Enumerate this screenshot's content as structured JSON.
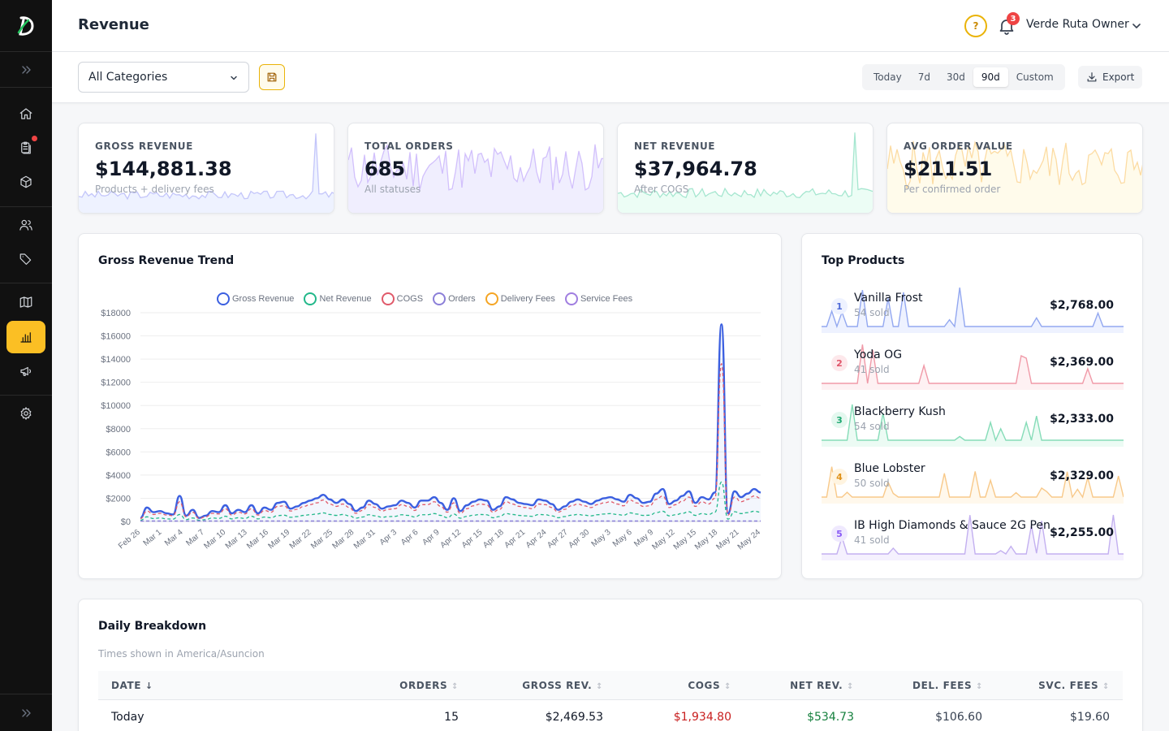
{
  "header": {
    "title": "Revenue",
    "help_glyph": "?",
    "notification_count": "3",
    "user_name": "Verde Ruta Owner"
  },
  "sidebar": {
    "items": [
      {
        "icon": "home-icon",
        "active": false
      },
      {
        "icon": "clipboard-icon",
        "active": false,
        "has_dot": true
      },
      {
        "icon": "box-icon",
        "active": false
      },
      {
        "icon": "users-icon",
        "active": false
      },
      {
        "icon": "tag-icon",
        "active": false
      },
      {
        "icon": "map-icon",
        "active": false
      },
      {
        "icon": "bar-chart-icon",
        "active": true
      },
      {
        "icon": "megaphone-icon",
        "active": false
      },
      {
        "icon": "gear-icon",
        "active": false
      }
    ]
  },
  "toolbar": {
    "category": "All Categories",
    "ranges": [
      "Today",
      "7d",
      "30d",
      "90d",
      "Custom"
    ],
    "active_range": "90d",
    "export_label": "Export"
  },
  "kpis": [
    {
      "label": "GROSS REVENUE",
      "value": "$144,881.38",
      "sub": "Products + delivery fees",
      "color": "#6366f1",
      "fill": "#eef2ff"
    },
    {
      "label": "TOTAL ORDERS",
      "value": "685",
      "sub": "All statuses",
      "color": "#8b5cf6",
      "fill": "#f0eefe"
    },
    {
      "label": "NET REVENUE",
      "value": "$37,964.78",
      "sub": "After COGS",
      "color": "#10b981",
      "fill": "#ecfdf5"
    },
    {
      "label": "AVG ORDER VALUE",
      "value": "$211.51",
      "sub": "Per confirmed order",
      "color": "#f59e0b",
      "fill": "#fffbeb"
    }
  ],
  "trend": {
    "title": "Gross Revenue Trend",
    "legend": [
      {
        "name": "Gross Revenue",
        "color": "#3b5fe0"
      },
      {
        "name": "Net Revenue",
        "color": "#22b88a"
      },
      {
        "name": "COGS",
        "color": "#e05a6a"
      },
      {
        "name": "Orders",
        "color": "#8b7fd8"
      },
      {
        "name": "Delivery Fees",
        "color": "#f5a524"
      },
      {
        "name": "Service Fees",
        "color": "#a07ee0"
      }
    ]
  },
  "chart_data": {
    "type": "line",
    "ylim": [
      0,
      18000
    ],
    "y_ticks": [
      "$0",
      "$2000",
      "$4000",
      "$6000",
      "$8000",
      "$10000",
      "$12000",
      "$14000",
      "$16000",
      "$18000"
    ],
    "x_ticks": [
      "Feb 26",
      "Mar 1",
      "Mar 4",
      "Mar 7",
      "Mar 10",
      "Mar 13",
      "Mar 16",
      "Mar 19",
      "Mar 22",
      "Mar 25",
      "Mar 28",
      "Mar 31",
      "Apr 3",
      "Apr 6",
      "Apr 9",
      "Apr 12",
      "Apr 15",
      "Apr 18",
      "Apr 21",
      "Apr 24",
      "Apr 27",
      "Apr 30",
      "May 3",
      "May 6",
      "May 9",
      "May 12",
      "May 15",
      "May 18",
      "May 21",
      "May 24"
    ],
    "series": [
      {
        "name": "Gross Revenue",
        "values": [
          300,
          1200,
          800,
          900,
          700,
          600,
          2200,
          500,
          1000,
          300,
          500,
          900,
          800,
          1400,
          700,
          1000,
          800,
          1400,
          700,
          1200,
          1000,
          1600,
          1700,
          1100,
          1300,
          1600,
          1800,
          2000,
          2300,
          1900,
          1600,
          1900,
          1500,
          900,
          1200,
          1800,
          1500,
          1100,
          1300,
          1400,
          1800,
          1600,
          1200,
          1800,
          1800,
          2100,
          1600,
          1000,
          2000,
          900,
          1400,
          1700,
          1900,
          1800,
          1000,
          1300,
          2100,
          1900,
          1600,
          1500,
          1400,
          1900,
          1800,
          1500,
          1000,
          1300,
          1700,
          1900,
          1700,
          1500,
          1800,
          2000,
          2100,
          1900,
          1700,
          2300,
          2000,
          1600,
          1700,
          2400,
          2800,
          1500,
          1800,
          2200,
          2600,
          1600,
          2100,
          1900,
          2500,
          17000,
          700,
          2600,
          2100,
          2400,
          2800,
          2500
        ]
      },
      {
        "name": "COGS",
        "values": [
          250,
          900,
          600,
          700,
          550,
          500,
          1700,
          400,
          800,
          250,
          400,
          700,
          650,
          1100,
          550,
          800,
          650,
          1100,
          550,
          950,
          800,
          1300,
          1350,
          900,
          1050,
          1300,
          1450,
          1600,
          1850,
          1500,
          1300,
          1500,
          1200,
          700,
          950,
          1450,
          1200,
          900,
          1050,
          1100,
          1450,
          1300,
          950,
          1450,
          1450,
          1700,
          1300,
          800,
          1600,
          700,
          1100,
          1350,
          1500,
          1450,
          800,
          1050,
          1700,
          1500,
          1300,
          1200,
          1100,
          1500,
          1450,
          1200,
          800,
          1050,
          1350,
          1500,
          1350,
          1200,
          1450,
          1600,
          1700,
          1500,
          1350,
          1850,
          1600,
          1300,
          1350,
          1900,
          2200,
          1200,
          1450,
          1750,
          2100,
          1300,
          1700,
          1500,
          2000,
          13600,
          550,
          2100,
          1700,
          1900,
          2200,
          2000
        ]
      },
      {
        "name": "Net Revenue",
        "values": [
          100,
          400,
          250,
          300,
          220,
          200,
          600,
          160,
          300,
          100,
          160,
          300,
          260,
          450,
          220,
          320,
          260,
          450,
          220,
          380,
          320,
          500,
          540,
          360,
          420,
          520,
          580,
          640,
          740,
          600,
          520,
          600,
          480,
          280,
          380,
          580,
          480,
          360,
          420,
          440,
          580,
          520,
          380,
          580,
          580,
          680,
          520,
          320,
          640,
          280,
          440,
          540,
          600,
          580,
          320,
          420,
          680,
          600,
          520,
          480,
          440,
          600,
          580,
          480,
          320,
          420,
          540,
          600,
          540,
          480,
          580,
          640,
          680,
          600,
          540,
          740,
          640,
          520,
          540,
          760,
          880,
          480,
          580,
          700,
          840,
          520,
          680,
          600,
          800,
          3400,
          200,
          840,
          680,
          760,
          880,
          800
        ]
      }
    ]
  },
  "top_products": {
    "title": "Top Products",
    "items": [
      {
        "rank": "1",
        "name": "Vanilla Frost",
        "sold": "54 sold",
        "revenue": "$2,768.00",
        "color": "#93a8f0",
        "fill": "#eef2ff",
        "rank_bg": "#eef2ff",
        "rank_fg": "#4f6bd8"
      },
      {
        "rank": "2",
        "name": "Yoda OG",
        "sold": "41 sold",
        "revenue": "$2,369.00",
        "color": "#f09aa8",
        "fill": "#fef1f3",
        "rank_bg": "#fde8eb",
        "rank_fg": "#e0566a"
      },
      {
        "rank": "3",
        "name": "Blackberry Kush",
        "sold": "54 sold",
        "revenue": "$2,333.00",
        "color": "#86dcb8",
        "fill": "#ecfbf4",
        "rank_bg": "#e4f8ef",
        "rank_fg": "#1fa872"
      },
      {
        "rank": "4",
        "name": "Blue Lobster",
        "sold": "50 sold",
        "revenue": "$2,329.00",
        "color": "#f8c98a",
        "fill": "#fff8ec",
        "rank_bg": "#fff4e0",
        "rank_fg": "#e0921a"
      },
      {
        "rank": "5",
        "name": "IB High Diamonds & Sauce 2G Pen",
        "sold": "41 sold",
        "revenue": "$2,255.00",
        "color": "#c3b0f0",
        "fill": "#f5f1fe",
        "rank_bg": "#efe9fe",
        "rank_fg": "#8b5cf6"
      }
    ]
  },
  "table": {
    "title": "Daily Breakdown",
    "subtitle": "Times shown in America/Asuncion",
    "columns": [
      "DATE",
      "ORDERS",
      "GROSS REV.",
      "COGS",
      "NET REV.",
      "DEL. FEES",
      "SVC. FEES"
    ],
    "rows": [
      {
        "date": "Today",
        "orders": "15",
        "gross": "$2,469.53",
        "cogs": "$1,934.80",
        "net": "$534.73",
        "del": "$106.60",
        "svc": "$19.60"
      }
    ]
  }
}
